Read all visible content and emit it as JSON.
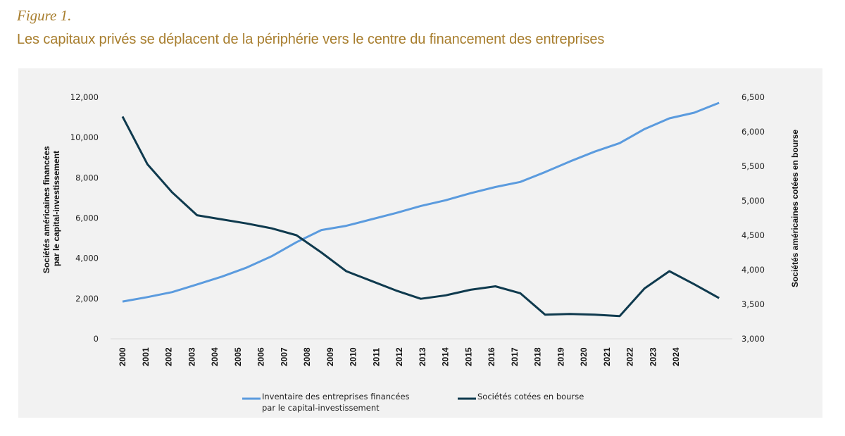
{
  "figure_label": "Figure 1.",
  "figure_title": "Les capitaux privés se déplacent de la périphérie vers le centre du financement des entreprises",
  "colors": {
    "title": "#a87e2e",
    "panel_bg": "#f2f2f2",
    "pe_series": "#5b9bde",
    "public_series": "#0f3a4e",
    "baseline": "#d9d9d9"
  },
  "chart_data": {
    "type": "line",
    "title": "Les capitaux privés se déplacent de la périphérie vers le centre du financement des entreprises",
    "xlabel": "",
    "x_tick_labels": [
      "2000",
      "2001",
      "2002",
      "2003",
      "2004",
      "2005",
      "2006",
      "2007",
      "2008",
      "2009",
      "2010",
      "2011",
      "2012",
      "2013",
      "2014",
      "2015",
      "2016",
      "2017",
      "2018",
      "2019",
      "2020",
      "2021",
      "2022",
      "2023",
      "2024"
    ],
    "x": [
      "2000",
      "2001",
      "2002",
      "2003",
      "2004",
      "2005",
      "2006",
      "2007",
      "2008",
      "2009",
      "2010",
      "2011",
      "2012",
      "2013",
      "2014",
      "2015",
      "2016",
      "2017",
      "2018",
      "2019",
      "2020",
      "2021",
      "2022",
      "2023",
      "2024"
    ],
    "y_left": {
      "label_line1": "Sociétés américaines financées",
      "label_line2": "par le capital-investissement",
      "range": [
        0,
        12000
      ],
      "ticks": [
        0,
        2000,
        4000,
        6000,
        8000,
        10000,
        12000
      ],
      "tick_labels": [
        "0",
        "2,000",
        "4,000",
        "6,000",
        "8,000",
        "10,000",
        "12,000"
      ]
    },
    "y_right": {
      "label": "Sociétés américaines cotées en bourse",
      "range": [
        3000,
        6500
      ],
      "ticks": [
        3000,
        3500,
        4000,
        4500,
        5000,
        5500,
        6000,
        6500
      ],
      "tick_labels": [
        "3,000",
        "3,500",
        "4,000",
        "4,500",
        "5,000",
        "5,500",
        "6,000",
        "6,500"
      ]
    },
    "grid": false,
    "legend_position": "bottom",
    "series": [
      {
        "name": "Inventaire des entreprises financées par le capital-investissement",
        "legend_line1": "Inventaire des entreprises financées",
        "legend_line2": "par le capital-investissement",
        "axis": "left",
        "color": "#5b9bde",
        "values": [
          1850,
          2070,
          2320,
          2700,
          3090,
          3540,
          4100,
          4800,
          5400,
          5610,
          5930,
          6250,
          6600,
          6880,
          7230,
          7540,
          7790,
          8280,
          8810,
          9300,
          9720,
          10420,
          10950,
          11230,
          11720
        ]
      },
      {
        "name": "Sociétés cotées en bourse",
        "legend_line1": "Sociétés cotées en bourse",
        "legend_line2": "",
        "axis": "right",
        "color": "#0f3a4e",
        "values": [
          6220,
          5530,
          5120,
          4790,
          4730,
          4670,
          4600,
          4500,
          4250,
          3980,
          3840,
          3700,
          3580,
          3630,
          3710,
          3760,
          3660,
          3350,
          3360,
          3350,
          3330,
          3730,
          3980,
          3790,
          3590
        ]
      }
    ]
  }
}
